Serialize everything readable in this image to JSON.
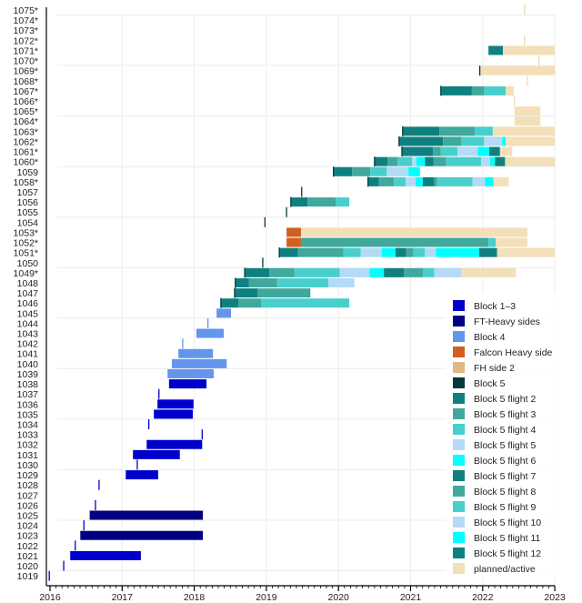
{
  "chart_data": {
    "type": "bar",
    "subtype": "horizontal timeline (per-booster flight history)",
    "title": "",
    "xlabel": "",
    "ylabel": "",
    "xlim": [
      2016,
      2023
    ],
    "x_ticks": [
      "2016",
      "2017",
      "2018",
      "2019",
      "2020",
      "2021",
      "2022",
      "2023"
    ],
    "grid": true,
    "legend_position": "bottom-right",
    "legend": [
      {
        "key": "b13",
        "label": "Block 1–3",
        "color": "#0000cd"
      },
      {
        "key": "fth",
        "label": "FT-Heavy sides",
        "color": "#000080"
      },
      {
        "key": "b4",
        "label": "Block 4",
        "color": "#6495ed"
      },
      {
        "key": "fhs",
        "label": "Falcon Heavy side",
        "color": "#d0601e"
      },
      {
        "key": "fhs2",
        "label": "FH side 2",
        "color": "#deb887"
      },
      {
        "key": "b5",
        "label": "Block 5",
        "color": "#063838"
      },
      {
        "key": "f2",
        "label": "Block 5 flight 2",
        "color": "#0e8080"
      },
      {
        "key": "f3",
        "label": "Block 5 flight 3",
        "color": "#40a89c"
      },
      {
        "key": "f4",
        "label": "Block 5 flight 4",
        "color": "#48cfcc"
      },
      {
        "key": "f5",
        "label": "Block 5 flight 5",
        "color": "#b3daf7"
      },
      {
        "key": "f6",
        "label": "Block 5 flight 6",
        "color": "#00ffff"
      },
      {
        "key": "f7",
        "label": "Block 5 flight 7",
        "color": "#0e8080"
      },
      {
        "key": "f8",
        "label": "Block 5 flight 8",
        "color": "#40a89c"
      },
      {
        "key": "f9",
        "label": "Block 5 flight 9",
        "color": "#48cfcc"
      },
      {
        "key": "f10",
        "label": "Block 5 flight 10",
        "color": "#b3daf7"
      },
      {
        "key": "f11",
        "label": "Block 5 flight 11",
        "color": "#00ffff"
      },
      {
        "key": "f12",
        "label": "Block 5 flight 12",
        "color": "#0e8080"
      },
      {
        "key": "planned",
        "label": "planned/active",
        "color": "#f3dfb8"
      }
    ],
    "rows": [
      {
        "label": "1075*",
        "ticks": [
          [
            2022.58,
            "planned"
          ]
        ],
        "segments": []
      },
      {
        "label": "1074*",
        "ticks": [],
        "segments": []
      },
      {
        "label": "1073*",
        "ticks": [],
        "segments": []
      },
      {
        "label": "1072*",
        "ticks": [
          [
            2022.58,
            "planned"
          ]
        ],
        "segments": []
      },
      {
        "label": "1071*",
        "ticks": [],
        "segments": [
          [
            2022.08,
            2022.28,
            "f2"
          ],
          [
            2022.28,
            2023.0,
            "planned"
          ]
        ]
      },
      {
        "label": "1070*",
        "ticks": [
          [
            2022.78,
            "planned"
          ]
        ],
        "segments": []
      },
      {
        "label": "1069*",
        "ticks": [
          [
            2021.96,
            "b5"
          ]
        ],
        "segments": [
          [
            2021.97,
            2023.0,
            "planned"
          ]
        ]
      },
      {
        "label": "1068*",
        "ticks": [
          [
            2022.62,
            "planned"
          ]
        ],
        "segments": []
      },
      {
        "label": "1067*",
        "ticks": [
          [
            2021.42,
            "b5"
          ]
        ],
        "segments": [
          [
            2021.42,
            2021.85,
            "f2"
          ],
          [
            2021.85,
            2022.02,
            "f3"
          ],
          [
            2022.02,
            2022.32,
            "f4"
          ],
          [
            2022.32,
            2022.43,
            "planned"
          ]
        ]
      },
      {
        "label": "1066*",
        "ticks": [
          [
            2022.44,
            "planned"
          ]
        ],
        "segments": []
      },
      {
        "label": "1065*",
        "ticks": [],
        "segments": [
          [
            2022.44,
            2022.8,
            "planned"
          ]
        ]
      },
      {
        "label": "1064*",
        "ticks": [],
        "segments": [
          [
            2022.44,
            2022.8,
            "planned"
          ]
        ]
      },
      {
        "label": "1063*",
        "ticks": [
          [
            2020.89,
            "b5"
          ]
        ],
        "segments": [
          [
            2020.89,
            2021.4,
            "f2"
          ],
          [
            2021.4,
            2021.89,
            "f3"
          ],
          [
            2021.89,
            2022.14,
            "f4"
          ],
          [
            2022.14,
            2023.0,
            "planned"
          ]
        ]
      },
      {
        "label": "1062*",
        "ticks": [
          [
            2020.84,
            "b5"
          ]
        ],
        "segments": [
          [
            2020.84,
            2021.45,
            "f2"
          ],
          [
            2021.45,
            2021.7,
            "f3"
          ],
          [
            2021.7,
            2022.02,
            "f4"
          ],
          [
            2022.02,
            2022.27,
            "f5"
          ],
          [
            2022.27,
            2022.32,
            "f6"
          ],
          [
            2022.32,
            2023.0,
            "planned"
          ]
        ]
      },
      {
        "label": "1061*",
        "ticks": [
          [
            2020.88,
            "b5"
          ]
        ],
        "segments": [
          [
            2020.88,
            2021.31,
            "f2"
          ],
          [
            2021.31,
            2021.42,
            "f3"
          ],
          [
            2021.42,
            2021.65,
            "f4"
          ],
          [
            2021.65,
            2021.93,
            "f5"
          ],
          [
            2021.93,
            2022.09,
            "f6"
          ],
          [
            2022.09,
            2022.24,
            "f7"
          ],
          [
            2022.24,
            2022.41,
            "planned"
          ]
        ]
      },
      {
        "label": "1060*",
        "ticks": [
          [
            2020.5,
            "b5"
          ]
        ],
        "segments": [
          [
            2020.5,
            2020.68,
            "f2"
          ],
          [
            2020.68,
            2020.82,
            "f3"
          ],
          [
            2020.82,
            2021.02,
            "f4"
          ],
          [
            2021.02,
            2021.08,
            "f5"
          ],
          [
            2021.08,
            2021.2,
            "f6"
          ],
          [
            2021.2,
            2021.32,
            "f7"
          ],
          [
            2021.32,
            2021.49,
            "f8"
          ],
          [
            2021.49,
            2021.98,
            "f9"
          ],
          [
            2021.98,
            2022.1,
            "f10"
          ],
          [
            2022.1,
            2022.17,
            "f11"
          ],
          [
            2022.17,
            2022.31,
            "f12"
          ],
          [
            2022.31,
            2023.0,
            "planned"
          ]
        ]
      },
      {
        "label": "1059",
        "ticks": [
          [
            2019.93,
            "b5"
          ]
        ],
        "segments": [
          [
            2019.93,
            2020.19,
            "f2"
          ],
          [
            2020.19,
            2020.44,
            "f3"
          ],
          [
            2020.44,
            2020.67,
            "f4"
          ],
          [
            2020.67,
            2020.97,
            "f5"
          ],
          [
            2020.97,
            2021.13,
            "f6"
          ]
        ]
      },
      {
        "label": "1058*",
        "ticks": [
          [
            2020.41,
            "b5"
          ]
        ],
        "segments": [
          [
            2020.41,
            2020.56,
            "f2"
          ],
          [
            2020.56,
            2020.77,
            "f3"
          ],
          [
            2020.77,
            2020.93,
            "f4"
          ],
          [
            2020.93,
            2021.07,
            "f5"
          ],
          [
            2021.07,
            2021.17,
            "f6"
          ],
          [
            2021.17,
            2021.33,
            "f7"
          ],
          [
            2021.33,
            2021.37,
            "f8"
          ],
          [
            2021.37,
            2021.86,
            "f9"
          ],
          [
            2021.86,
            2022.03,
            "f10"
          ],
          [
            2022.03,
            2022.15,
            "f11"
          ],
          [
            2022.15,
            2022.36,
            "planned"
          ]
        ]
      },
      {
        "label": "1057",
        "ticks": [
          [
            2019.49,
            "b5"
          ]
        ],
        "segments": []
      },
      {
        "label": "1056",
        "ticks": [
          [
            2019.34,
            "b5"
          ]
        ],
        "segments": [
          [
            2019.34,
            2019.57,
            "f2"
          ],
          [
            2019.57,
            2019.96,
            "f3"
          ],
          [
            2019.96,
            2020.15,
            "f4"
          ]
        ]
      },
      {
        "label": "1055",
        "ticks": [
          [
            2019.28,
            "b5"
          ]
        ],
        "segments": []
      },
      {
        "label": "1054",
        "ticks": [
          [
            2018.98,
            "b5"
          ]
        ],
        "segments": []
      },
      {
        "label": "1053*",
        "ticks": [],
        "segments": [
          [
            2019.28,
            2019.48,
            "fhs"
          ],
          [
            2019.48,
            2022.62,
            "planned"
          ]
        ]
      },
      {
        "label": "1052*",
        "ticks": [],
        "segments": [
          [
            2019.28,
            2019.48,
            "fhs"
          ],
          [
            2019.48,
            2022.08,
            "f3"
          ],
          [
            2022.08,
            2022.18,
            "f4"
          ],
          [
            2022.18,
            2022.62,
            "planned"
          ]
        ]
      },
      {
        "label": "1051*",
        "ticks": [
          [
            2019.18,
            "b5"
          ]
        ],
        "segments": [
          [
            2019.18,
            2019.44,
            "f2"
          ],
          [
            2019.44,
            2020.07,
            "f3"
          ],
          [
            2020.07,
            2020.31,
            "f4"
          ],
          [
            2020.31,
            2020.6,
            "f5"
          ],
          [
            2020.6,
            2020.79,
            "f6"
          ],
          [
            2020.79,
            2020.94,
            "f7"
          ],
          [
            2020.94,
            2021.04,
            "f8"
          ],
          [
            2021.04,
            2021.2,
            "f9"
          ],
          [
            2021.2,
            2021.35,
            "f10"
          ],
          [
            2021.35,
            2021.95,
            "f11"
          ],
          [
            2021.95,
            2022.2,
            "f12"
          ],
          [
            2022.2,
            2023.0,
            "planned"
          ]
        ]
      },
      {
        "label": "1050",
        "ticks": [
          [
            2018.95,
            "b5"
          ]
        ],
        "segments": []
      },
      {
        "label": "1049*",
        "ticks": [
          [
            2018.7,
            "b5"
          ]
        ],
        "segments": [
          [
            2018.7,
            2019.04,
            "f2"
          ],
          [
            2019.04,
            2019.39,
            "f3"
          ],
          [
            2019.39,
            2020.02,
            "f4"
          ],
          [
            2020.02,
            2020.43,
            "f5"
          ],
          [
            2020.43,
            2020.63,
            "f6"
          ],
          [
            2020.63,
            2020.91,
            "f7"
          ],
          [
            2020.91,
            2021.17,
            "f8"
          ],
          [
            2021.17,
            2021.33,
            "f9"
          ],
          [
            2021.33,
            2021.7,
            "f10"
          ],
          [
            2021.7,
            2022.46,
            "planned"
          ]
        ]
      },
      {
        "label": "1048",
        "ticks": [
          [
            2018.57,
            "b5"
          ]
        ],
        "segments": [
          [
            2018.57,
            2018.76,
            "f2"
          ],
          [
            2018.76,
            2019.15,
            "f3"
          ],
          [
            2019.15,
            2019.86,
            "f4"
          ],
          [
            2019.86,
            2020.22,
            "f5"
          ]
        ]
      },
      {
        "label": "1047",
        "ticks": [
          [
            2018.56,
            "b5"
          ]
        ],
        "segments": [
          [
            2018.56,
            2018.88,
            "f2"
          ],
          [
            2018.88,
            2019.61,
            "f3"
          ]
        ]
      },
      {
        "label": "1046",
        "ticks": [
          [
            2018.37,
            "b5"
          ]
        ],
        "segments": [
          [
            2018.37,
            2018.61,
            "f2"
          ],
          [
            2018.61,
            2018.93,
            "f3"
          ],
          [
            2018.93,
            2020.15,
            "f4"
          ]
        ]
      },
      {
        "label": "1045",
        "ticks": [],
        "segments": [
          [
            2018.31,
            2018.51,
            "b4"
          ]
        ]
      },
      {
        "label": "1044",
        "ticks": [
          [
            2018.19,
            "b4"
          ]
        ],
        "segments": []
      },
      {
        "label": "1043",
        "ticks": [],
        "segments": [
          [
            2018.03,
            2018.41,
            "b4"
          ]
        ]
      },
      {
        "label": "1042",
        "ticks": [
          [
            2017.84,
            "b4"
          ]
        ],
        "segments": []
      },
      {
        "label": "1041",
        "ticks": [],
        "segments": [
          [
            2017.78,
            2018.26,
            "b4"
          ]
        ]
      },
      {
        "label": "1040",
        "ticks": [],
        "segments": [
          [
            2017.69,
            2018.45,
            "b4"
          ]
        ]
      },
      {
        "label": "1039",
        "ticks": [],
        "segments": [
          [
            2017.63,
            2018.27,
            "b4"
          ]
        ]
      },
      {
        "label": "1038",
        "ticks": [],
        "segments": [
          [
            2017.65,
            2018.17,
            "b13"
          ]
        ]
      },
      {
        "label": "1037",
        "ticks": [
          [
            2017.51,
            "b13"
          ]
        ],
        "segments": []
      },
      {
        "label": "1036",
        "ticks": [],
        "segments": [
          [
            2017.49,
            2017.99,
            "b13"
          ]
        ]
      },
      {
        "label": "1035",
        "ticks": [],
        "segments": [
          [
            2017.44,
            2017.98,
            "b13"
          ]
        ]
      },
      {
        "label": "1034",
        "ticks": [
          [
            2017.37,
            "b13"
          ]
        ],
        "segments": []
      },
      {
        "label": "1033",
        "ticks": [
          [
            2018.11,
            "b13"
          ]
        ],
        "segments": []
      },
      {
        "label": "1032",
        "ticks": [],
        "segments": [
          [
            2017.34,
            2018.11,
            "b13"
          ]
        ]
      },
      {
        "label": "1031",
        "ticks": [],
        "segments": [
          [
            2017.15,
            2017.8,
            "b13"
          ]
        ]
      },
      {
        "label": "1030",
        "ticks": [
          [
            2017.21,
            "b13"
          ]
        ],
        "segments": []
      },
      {
        "label": "1029",
        "ticks": [],
        "segments": [
          [
            2017.05,
            2017.5,
            "b13"
          ]
        ]
      },
      {
        "label": "1028",
        "ticks": [
          [
            2016.68,
            "b13"
          ]
        ],
        "segments": []
      },
      {
        "label": "1027",
        "ticks": [],
        "segments": []
      },
      {
        "label": "1026",
        "ticks": [
          [
            2016.63,
            "b13"
          ]
        ],
        "segments": []
      },
      {
        "label": "1025",
        "ticks": [],
        "segments": [
          [
            2016.55,
            2018.12,
            "fth"
          ]
        ]
      },
      {
        "label": "1024",
        "ticks": [
          [
            2016.47,
            "b13"
          ]
        ],
        "segments": []
      },
      {
        "label": "1023",
        "ticks": [],
        "segments": [
          [
            2016.42,
            2018.12,
            "fth"
          ]
        ]
      },
      {
        "label": "1022",
        "ticks": [
          [
            2016.35,
            "b13"
          ]
        ],
        "segments": []
      },
      {
        "label": "1021",
        "ticks": [],
        "segments": [
          [
            2016.28,
            2017.26,
            "b13"
          ]
        ]
      },
      {
        "label": "1020",
        "ticks": [
          [
            2016.19,
            "b13"
          ]
        ],
        "segments": []
      },
      {
        "label": "1019",
        "ticks": [
          [
            2015.99,
            "b13"
          ]
        ],
        "segments": []
      }
    ]
  }
}
